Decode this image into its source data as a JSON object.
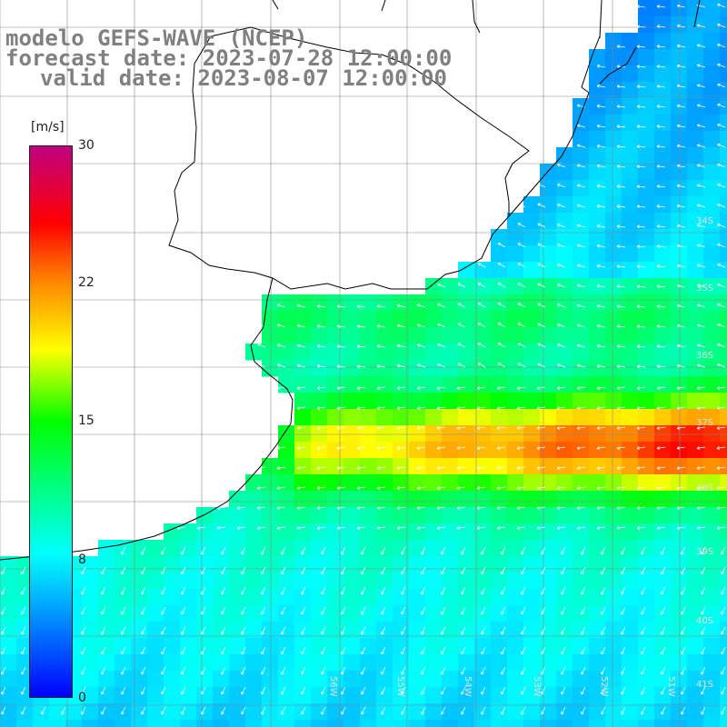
{
  "header": {
    "line1": "modelo GEFS-WAVE (NCEP)",
    "line2": "forecast date: 2023-07-28 12:00:00",
    "line3": "valid date: 2023-08-07 12:00:00"
  },
  "colorbar": {
    "unit": "[m/s]",
    "ticks": [
      "30",
      "22",
      "15",
      "8",
      "0"
    ],
    "stops": [
      "#0000ff",
      "#00a0ff",
      "#00ffff",
      "#00ff00",
      "#ffff00",
      "#ff8000",
      "#ff0000",
      "#c00080"
    ]
  },
  "lat_labels": [
    "34S",
    "35S",
    "36S",
    "37S",
    "38S",
    "39S",
    "40S",
    "41S"
  ],
  "lon_labels": [
    "56W",
    "55W",
    "54W",
    "53W",
    "52W",
    "51W"
  ]
}
